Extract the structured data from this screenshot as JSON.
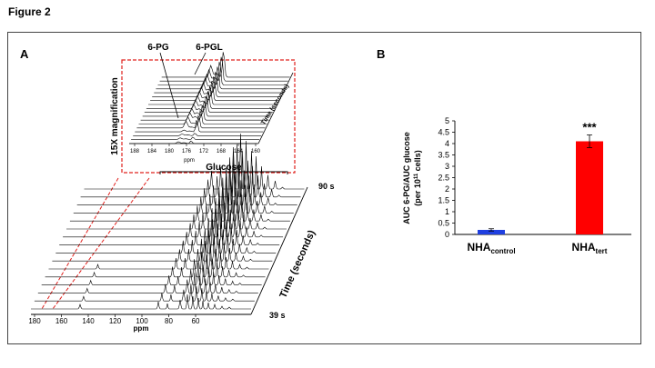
{
  "figure_title": "Figure 2",
  "panel_a": {
    "label": "A",
    "inset": {
      "ylabel": "15X magnification",
      "time_label": "Time (seconds)",
      "peak_labels": [
        "6-PG",
        "6-PGL"
      ],
      "ticks": [
        "188",
        "184",
        "180",
        "176",
        "172",
        "168",
        "164",
        "160"
      ],
      "xunit": "ppm"
    },
    "main": {
      "glucose_label": "Glucose",
      "time_label": "Time (seconds)",
      "time_end": "90 s",
      "time_start": "39 s",
      "ticks": [
        "180",
        "160",
        "140",
        "120",
        "100",
        "80",
        "60"
      ],
      "xunit": "ppm"
    }
  },
  "panel_b": {
    "label": "B"
  },
  "chart_data": {
    "type": "bar",
    "title": "",
    "categories": [
      "NHA",
      "NHA"
    ],
    "category_subscripts": [
      "control",
      "tert"
    ],
    "values": [
      0.2,
      4.1
    ],
    "errors": [
      0.05,
      0.28
    ],
    "colors": [
      "#1f3fe0",
      "#ff0000"
    ],
    "significance": [
      "",
      "***"
    ],
    "ylabel_line1": "AUC 6-PG/AUC glucose",
    "ylabel_line2_pre": "(per 10",
    "ylabel_line2_sup": "11",
    "ylabel_line2_post": " cells)",
    "ylim": [
      0,
      5
    ],
    "yticks": [
      "0",
      "0.5",
      "1",
      "1.5",
      "2",
      "2.5",
      "3",
      "3.5",
      "4",
      "4.5",
      "5"
    ]
  }
}
